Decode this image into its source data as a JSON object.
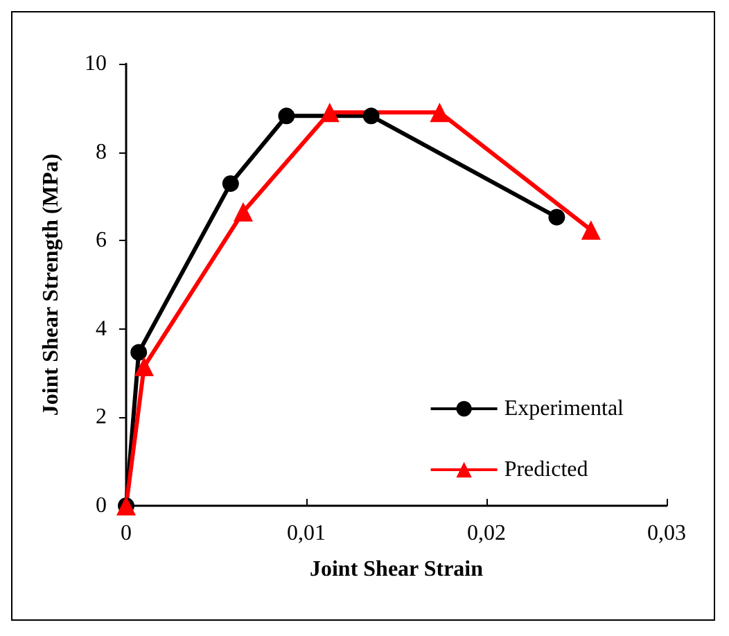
{
  "chart_data": {
    "type": "line",
    "xlabel": "Joint Shear Strain",
    "ylabel": "Joint Shear Strength (MPa)",
    "xlim": [
      0,
      0.03
    ],
    "xticks": [
      0,
      {
        "value": 0.01,
        "label": "0,01"
      },
      {
        "value": 0.02,
        "label": "0,02"
      },
      {
        "value": 0.03,
        "label": "0,03"
      }
    ],
    "ylim": [
      0,
      10
    ],
    "yticks": [
      0,
      2,
      4,
      6,
      8,
      10
    ],
    "grid": false,
    "legend": "bottom right",
    "series": [
      {
        "name": "Experimental",
        "color": "#000000",
        "marker": "circle",
        "x": [
          0,
          0.0007,
          0.0058,
          0.0089,
          0.0136,
          0.0239
        ],
        "values": [
          0,
          3.47,
          7.29,
          8.82,
          8.82,
          6.53
        ]
      },
      {
        "name": "Predicted",
        "color": "#ff0000",
        "marker": "triangle",
        "x": [
          0,
          0.001,
          0.0065,
          0.0113,
          0.0174,
          0.0258
        ],
        "values": [
          0,
          3.15,
          6.65,
          8.9,
          8.9,
          6.24
        ]
      }
    ]
  }
}
